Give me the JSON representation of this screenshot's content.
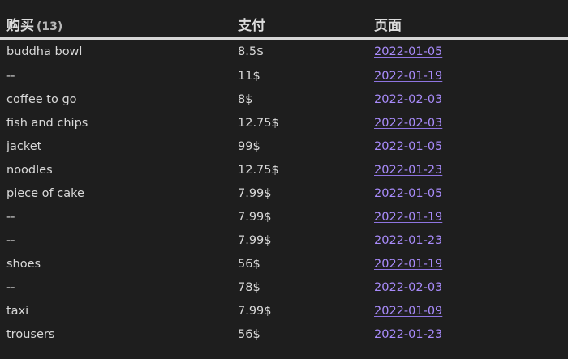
{
  "table": {
    "headers": {
      "item": "购买",
      "item_count": "(13)",
      "paid": "支付",
      "page": "页面"
    },
    "rows": [
      {
        "item": "buddha bowl",
        "paid": "8.5$",
        "page": "2022-01-05"
      },
      {
        "item": "--",
        "paid": "11$",
        "page": "2022-01-19"
      },
      {
        "item": "coffee to go",
        "paid": "8$",
        "page": "2022-02-03"
      },
      {
        "item": "fish and chips",
        "paid": "12.75$",
        "page": "2022-02-03"
      },
      {
        "item": "jacket",
        "paid": "99$",
        "page": "2022-01-05"
      },
      {
        "item": "noodles",
        "paid": "12.75$",
        "page": "2022-01-23"
      },
      {
        "item": "piece of cake",
        "paid": "7.99$",
        "page": "2022-01-05"
      },
      {
        "item": "--",
        "paid": "7.99$",
        "page": "2022-01-19"
      },
      {
        "item": "--",
        "paid": "7.99$",
        "page": "2022-01-23"
      },
      {
        "item": "shoes",
        "paid": "56$",
        "page": "2022-01-19"
      },
      {
        "item": "--",
        "paid": "78$",
        "page": "2022-02-03"
      },
      {
        "item": "taxi",
        "paid": "7.99$",
        "page": "2022-01-09"
      },
      {
        "item": "trousers",
        "paid": "56$",
        "page": "2022-01-23"
      }
    ]
  },
  "colors": {
    "background": "#1e1e1e",
    "text": "#d8d8d8",
    "link": "#a88bfa",
    "header_rule": "#d6d6d6"
  }
}
